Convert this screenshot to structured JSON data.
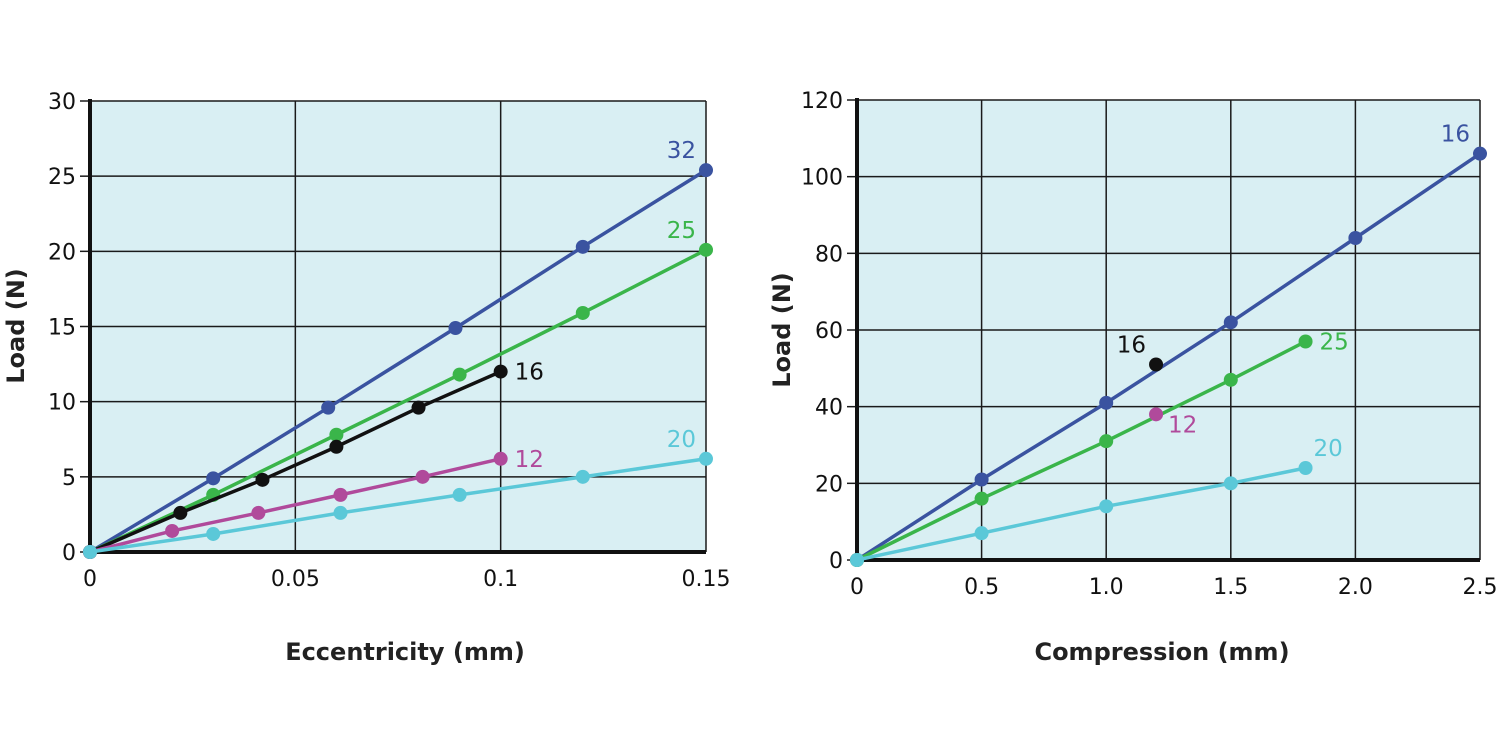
{
  "chart_data": [
    {
      "type": "line",
      "title": "",
      "xlabel": "Eccentricity (mm)",
      "ylabel": "Load (N)",
      "xlim": [
        0,
        0.15
      ],
      "ylim": [
        0,
        30
      ],
      "xticks": [
        0,
        0.05,
        0.1,
        0.15
      ],
      "xtick_labels": [
        "0",
        "0.05",
        "0.1",
        "0.15"
      ],
      "yticks": [
        0,
        5,
        10,
        15,
        20,
        25,
        30
      ],
      "ytick_labels": [
        "0",
        "5",
        "10",
        "15",
        "20",
        "25",
        "30"
      ],
      "grid": true,
      "background_color": "#d9eff3",
      "series": [
        {
          "name": "32",
          "color": "#3a53a0",
          "label_position": "above-left",
          "points": [
            [
              0,
              0
            ],
            [
              0.03,
              4.9
            ],
            [
              0.058,
              9.6
            ],
            [
              0.089,
              14.9
            ],
            [
              0.12,
              20.3
            ],
            [
              0.15,
              25.4
            ]
          ]
        },
        {
          "name": "25",
          "color": "#3ab54a",
          "label_position": "above-left",
          "points": [
            [
              0,
              0
            ],
            [
              0.03,
              3.8
            ],
            [
              0.06,
              7.8
            ],
            [
              0.09,
              11.8
            ],
            [
              0.12,
              15.9
            ],
            [
              0.15,
              20.1
            ]
          ]
        },
        {
          "name": "16",
          "color": "#111111",
          "label_position": "right",
          "points": [
            [
              0,
              0
            ],
            [
              0.022,
              2.6
            ],
            [
              0.042,
              4.8
            ],
            [
              0.06,
              7.0
            ],
            [
              0.08,
              9.6
            ],
            [
              0.1,
              12.0
            ]
          ]
        },
        {
          "name": "12",
          "color": "#b04a9b",
          "label_position": "right",
          "points": [
            [
              0,
              0
            ],
            [
              0.02,
              1.4
            ],
            [
              0.041,
              2.6
            ],
            [
              0.061,
              3.8
            ],
            [
              0.081,
              5.0
            ],
            [
              0.1,
              6.2
            ]
          ]
        },
        {
          "name": "20",
          "color": "#5bc8d8",
          "label_position": "above-left",
          "points": [
            [
              0,
              0
            ],
            [
              0.03,
              1.2
            ],
            [
              0.061,
              2.6
            ],
            [
              0.09,
              3.8
            ],
            [
              0.12,
              5.0
            ],
            [
              0.15,
              6.2
            ]
          ]
        }
      ]
    },
    {
      "type": "line",
      "title": "",
      "xlabel": "Compression (mm)",
      "ylabel": "Load (N)",
      "xlim": [
        0,
        2.5
      ],
      "ylim": [
        0,
        120
      ],
      "xticks": [
        0,
        0.5,
        1.0,
        1.5,
        2.0,
        2.5
      ],
      "xtick_labels": [
        "0",
        "0.5",
        "1.0",
        "1.5",
        "2.0",
        "2.5"
      ],
      "yticks": [
        0,
        20,
        40,
        60,
        80,
        100,
        120
      ],
      "ytick_labels": [
        "0",
        "20",
        "40",
        "60",
        "80",
        "100",
        "120"
      ],
      "grid": true,
      "background_color": "#d9eff3",
      "series": [
        {
          "name": "16",
          "color": "#3a53a0",
          "label_position": "above-left",
          "points": [
            [
              0,
              0
            ],
            [
              0.5,
              21
            ],
            [
              1.0,
              41
            ],
            [
              1.5,
              62
            ],
            [
              2.0,
              84
            ],
            [
              2.5,
              106
            ]
          ]
        },
        {
          "name": "25",
          "color": "#3ab54a",
          "label_position": "right",
          "points": [
            [
              0,
              0
            ],
            [
              0.5,
              16
            ],
            [
              1.0,
              31
            ],
            [
              1.5,
              47
            ],
            [
              1.8,
              57
            ]
          ]
        },
        {
          "name": "20",
          "color": "#5bc8d8",
          "label_position": "above-right",
          "points": [
            [
              0,
              0
            ],
            [
              0.5,
              7
            ],
            [
              1.0,
              14
            ],
            [
              1.5,
              20
            ],
            [
              1.8,
              24
            ]
          ]
        }
      ],
      "markers": [
        {
          "name": "16",
          "color": "#111111",
          "label_position": "above-left",
          "point": [
            1.2,
            51
          ]
        },
        {
          "name": "12",
          "color": "#b04a9b",
          "label_position": "below-right",
          "point": [
            1.2,
            38
          ]
        }
      ]
    }
  ]
}
